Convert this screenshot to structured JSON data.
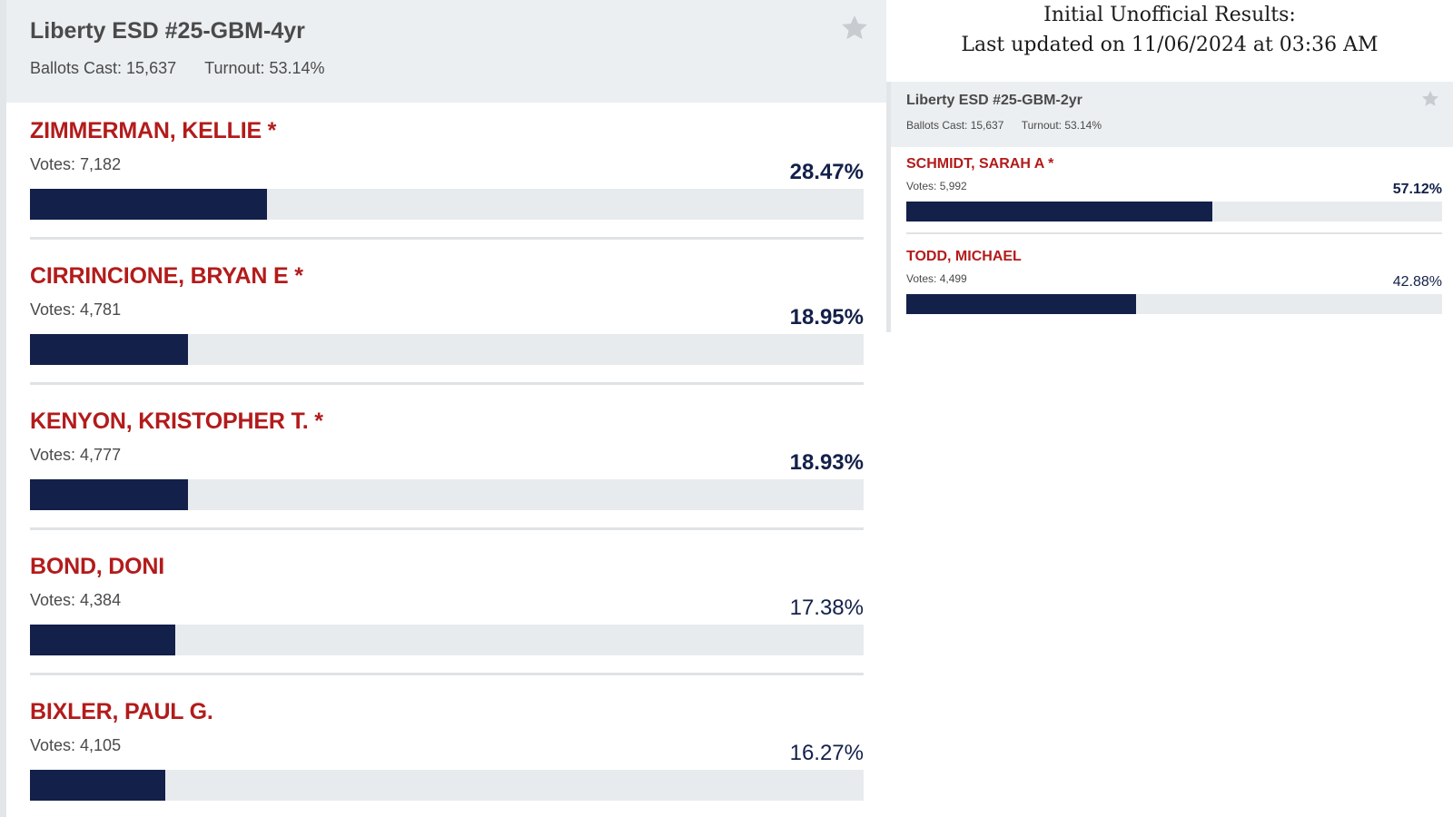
{
  "update_notice": {
    "line1": "Initial Unofficial Results:",
    "line2": "Last updated on 11/06/2024 at 03:36 AM"
  },
  "races": [
    {
      "title": "Liberty ESD #25-GBM-4yr",
      "ballots": "Ballots Cast: 15,637",
      "turnout": "Turnout: 53.14%",
      "candidates": [
        {
          "name": "ZIMMERMAN, KELLIE *",
          "votes": "Votes: 7,182",
          "pct_label": "28.47%",
          "pct": 28.47,
          "elected": true
        },
        {
          "name": "CIRRINCIONE, BRYAN E *",
          "votes": "Votes: 4,781",
          "pct_label": "18.95%",
          "pct": 18.95,
          "elected": true
        },
        {
          "name": "KENYON, KRISTOPHER T. *",
          "votes": "Votes: 4,777",
          "pct_label": "18.93%",
          "pct": 18.93,
          "elected": true
        },
        {
          "name": "BOND, DONI",
          "votes": "Votes: 4,384",
          "pct_label": "17.38%",
          "pct": 17.38,
          "elected": false
        },
        {
          "name": "BIXLER, PAUL G.",
          "votes": "Votes: 4,105",
          "pct_label": "16.27%",
          "pct": 16.27,
          "elected": false
        }
      ]
    },
    {
      "title": "Liberty ESD #25-GBM-2yr",
      "ballots": "Ballots Cast: 15,637",
      "turnout": "Turnout: 53.14%",
      "candidates": [
        {
          "name": "SCHMIDT, SARAH A *",
          "votes": "Votes: 5,992",
          "pct_label": "57.12%",
          "pct": 57.12,
          "elected": true
        },
        {
          "name": "TODD, MICHAEL",
          "votes": "Votes: 4,499",
          "pct_label": "42.88%",
          "pct": 42.88,
          "elected": false
        }
      ]
    }
  ],
  "colors": {
    "candidate_name": "#b31b1b",
    "bar_fill": "#13204a",
    "bar_track": "#e8ebed",
    "header_bg": "#eceff1",
    "star": "#c8ccd0"
  },
  "icons": {
    "favorite": "star-icon"
  }
}
